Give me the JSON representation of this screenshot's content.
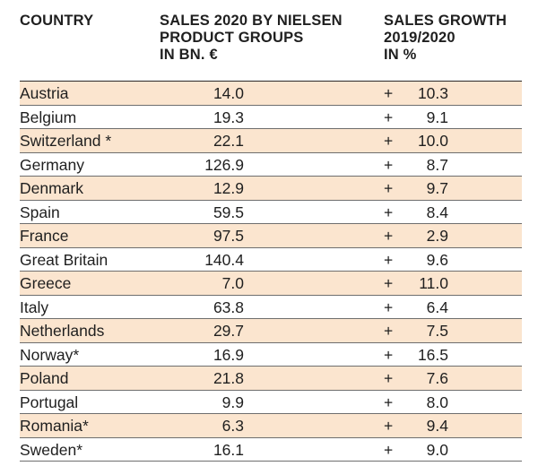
{
  "header": {
    "country": "COUNTRY",
    "sales_line1": "SALES 2020 BY NIELSEN",
    "sales_line2": "PRODUCT GROUPS",
    "sales_line3": "IN BN.  €",
    "growth_line1": "SALES GROWTH",
    "growth_line2": "2019/2020",
    "growth_line3": "IN %"
  },
  "rows": [
    {
      "country": "Austria",
      "sales": "14.0",
      "sign": "+",
      "growth": "10.3"
    },
    {
      "country": "Belgium",
      "sales": "19.3",
      "sign": "+",
      "growth": "9.1"
    },
    {
      "country": "Switzerland *",
      "sales": "22.1",
      "sign": "+",
      "growth": "10.0"
    },
    {
      "country": "Germany",
      "sales": "126.9",
      "sign": "+",
      "growth": "8.7"
    },
    {
      "country": "Denmark",
      "sales": "12.9",
      "sign": "+",
      "growth": "9.7"
    },
    {
      "country": "Spain",
      "sales": "59.5",
      "sign": "+",
      "growth": "8.4"
    },
    {
      "country": "France",
      "sales": "97.5",
      "sign": "+",
      "growth": "2.9"
    },
    {
      "country": "Great Britain",
      "sales": "140.4",
      "sign": "+",
      "growth": "9.6"
    },
    {
      "country": "Greece",
      "sales": "7.0",
      "sign": "+",
      "growth": "11.0"
    },
    {
      "country": "Italy",
      "sales": "63.8",
      "sign": "+",
      "growth": "6.4"
    },
    {
      "country": "Netherlands",
      "sales": "29.7",
      "sign": "+",
      "growth": "7.5"
    },
    {
      "country": "Norway*",
      "sales": "16.9",
      "sign": "+",
      "growth": "16.5"
    },
    {
      "country": "Poland",
      "sales": "21.8",
      "sign": "+",
      "growth": "7.6"
    },
    {
      "country": "Portugal",
      "sales": "9.9",
      "sign": "+",
      "growth": "8.0"
    },
    {
      "country": "Romania*",
      "sales": "6.3",
      "sign": "+",
      "growth": "9.4"
    },
    {
      "country": "Sweden*",
      "sales": "16.1",
      "sign": "+",
      "growth": "9.0"
    }
  ],
  "colors": {
    "row_shade": "#fbe5cf",
    "text": "#1f1f1f",
    "rule": "#6e6e6e"
  }
}
